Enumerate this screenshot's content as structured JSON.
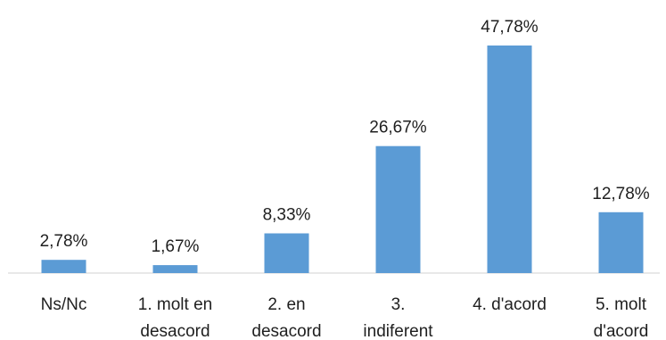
{
  "chart_data": {
    "type": "bar",
    "categories": [
      [
        "Ns/Nc"
      ],
      [
        "1. molt en",
        "desacord"
      ],
      [
        "2. en",
        "desacord"
      ],
      [
        "3.",
        "indiferent"
      ],
      [
        "4. d'acord"
      ],
      [
        "5. molt",
        "d'acord"
      ]
    ],
    "values": [
      2.78,
      1.67,
      8.33,
      26.67,
      47.78,
      12.78
    ],
    "data_labels": [
      "2,78%",
      "1,67%",
      "8,33%",
      "26,67%",
      "47,78%",
      "12,78%"
    ],
    "ylim": [
      0,
      50
    ],
    "grid": false,
    "legend": "none",
    "bar_color": "#5b9bd5"
  }
}
